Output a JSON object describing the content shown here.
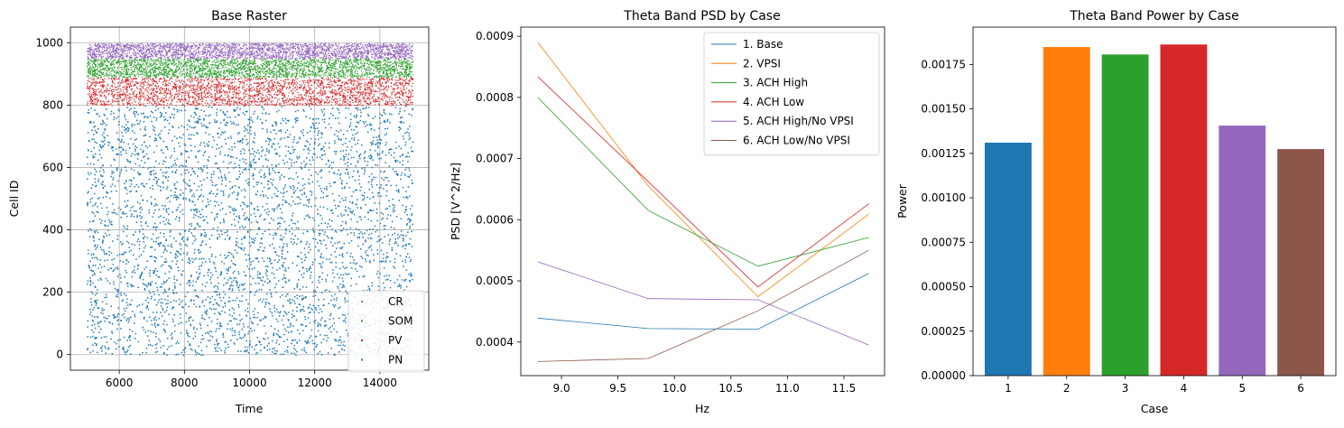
{
  "chart_data": [
    {
      "type": "scatter",
      "title": "Base Raster",
      "xlabel": "Time",
      "ylabel": "Cell ID",
      "xlim": [
        4500,
        15500
      ],
      "ylim": [
        -50,
        1050
      ],
      "xticks": [
        6000,
        8000,
        10000,
        12000,
        14000
      ],
      "yticks": [
        0,
        200,
        400,
        600,
        800,
        1000
      ],
      "grid": true,
      "legend_position": "lower-right",
      "series": [
        {
          "name": "CR",
          "color": "#9467bd",
          "x_range": [
            5000,
            15000
          ],
          "cell_range": [
            950,
            999
          ],
          "density": "dense"
        },
        {
          "name": "SOM",
          "color": "#2ca02c",
          "x_range": [
            5000,
            15000
          ],
          "cell_range": [
            890,
            949
          ],
          "density": "dense"
        },
        {
          "name": "PV",
          "color": "#d62728",
          "x_range": [
            5000,
            15000
          ],
          "cell_range": [
            800,
            889
          ],
          "density": "dense"
        },
        {
          "name": "PN",
          "color": "#1f77b4",
          "x_range": [
            5000,
            15000
          ],
          "cell_range": [
            0,
            799
          ],
          "density": "sparse"
        }
      ]
    },
    {
      "type": "line",
      "title": "Theta Band PSD by Case",
      "xlabel": "Hz",
      "ylabel": "PSD [V^2/Hz]",
      "x": [
        8.79,
        9.77,
        10.74,
        11.72
      ],
      "xlim": [
        8.64,
        11.86
      ],
      "ylim": [
        0.000345,
        0.000915
      ],
      "xticks": [
        9.0,
        9.5,
        10.0,
        10.5,
        11.0,
        11.5
      ],
      "yticks": [
        0.0004,
        0.0005,
        0.0006,
        0.0007,
        0.0008,
        0.0009
      ],
      "legend_position": "top-right",
      "series": [
        {
          "name": "1. Base",
          "color": "#1f77b4",
          "values": [
            0.000439,
            0.000422,
            0.000421,
            0.000512
          ]
        },
        {
          "name": "2. VPSI",
          "color": "#ff7f0e",
          "values": [
            0.00089,
            0.000655,
            0.000474,
            0.000609
          ]
        },
        {
          "name": "3. ACH High",
          "color": "#2ca02c",
          "values": [
            0.0008,
            0.000615,
            0.000524,
            0.000571
          ]
        },
        {
          "name": "4. ACH Low",
          "color": "#d62728",
          "values": [
            0.000834,
            0.000662,
            0.00049,
            0.000626
          ]
        },
        {
          "name": "5. ACH High/No VPSI",
          "color": "#9467bd",
          "values": [
            0.000531,
            0.000471,
            0.000469,
            0.000395
          ]
        },
        {
          "name": "6. ACH Low/No VPSI",
          "color": "#8c564b",
          "values": [
            0.000368,
            0.000373,
            0.000451,
            0.00055
          ]
        }
      ]
    },
    {
      "type": "bar",
      "title": "Theta Band Power by Case",
      "xlabel": "Case",
      "ylabel": "Power",
      "categories": [
        "1",
        "2",
        "3",
        "4",
        "5",
        "6"
      ],
      "values": [
        0.00131,
        0.001848,
        0.001806,
        0.001862,
        0.001406,
        0.001274
      ],
      "colors": [
        "#1f77b4",
        "#ff7f0e",
        "#2ca02c",
        "#d62728",
        "#9467bd",
        "#8c564b"
      ],
      "ylim": [
        0,
        0.00196
      ],
      "yticks": [
        "0.00000",
        "0.00025",
        "0.00050",
        "0.00075",
        "0.00100",
        "0.00125",
        "0.00150",
        "0.00175"
      ],
      "grid": false
    }
  ]
}
